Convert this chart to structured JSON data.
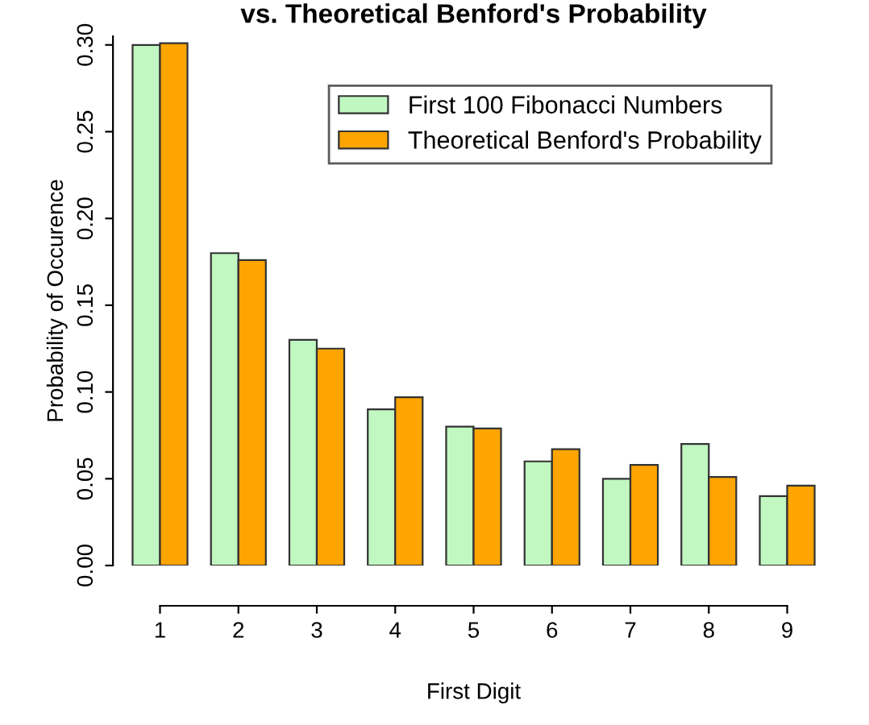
{
  "chart_data": {
    "type": "bar",
    "title": "vs. Theoretical Benford's Probability",
    "xlabel": "First Digit",
    "ylabel": "Probability of Occurence",
    "categories": [
      "1",
      "2",
      "3",
      "4",
      "5",
      "6",
      "7",
      "8",
      "9"
    ],
    "series": [
      {
        "name": "First 100 Fibonacci Numbers",
        "color": "#c1f7c1",
        "values": [
          0.3,
          0.18,
          0.13,
          0.09,
          0.08,
          0.06,
          0.05,
          0.07,
          0.04
        ]
      },
      {
        "name": "Theoretical Benford's Probability",
        "color": "#ffa500",
        "values": [
          0.301,
          0.176,
          0.125,
          0.097,
          0.079,
          0.067,
          0.058,
          0.051,
          0.046
        ]
      }
    ],
    "ylim": [
      0,
      0.305
    ],
    "yticks": [
      {
        "value": 0,
        "label": "0.00"
      },
      {
        "value": 0.05,
        "label": "0.05"
      },
      {
        "value": 0.1,
        "label": "0.10"
      },
      {
        "value": 0.15,
        "label": "0.15"
      },
      {
        "value": 0.2,
        "label": "0.20"
      },
      {
        "value": 0.25,
        "label": "0.25"
      },
      {
        "value": 0.3,
        "label": "0.30"
      }
    ],
    "legend": "top right",
    "grid": false
  }
}
